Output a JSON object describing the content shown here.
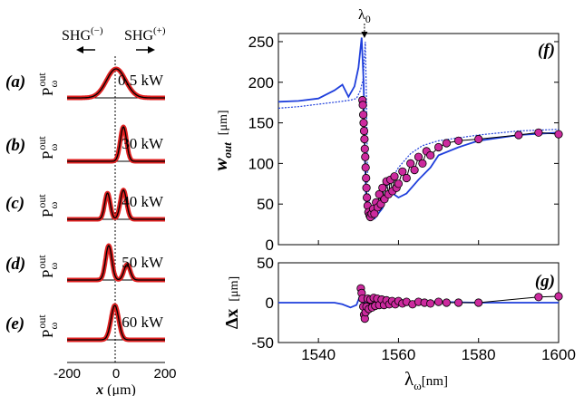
{
  "chart_data": [
    {
      "type": "line",
      "panels": [
        {
          "tag": "(a)",
          "power": "0.5 kW",
          "profile": [
            {
              "center": 0,
              "width": 55,
              "amp": 1.0
            }
          ]
        },
        {
          "tag": "(b)",
          "power": "30 kW",
          "profile": [
            {
              "center": 30,
              "width": 18,
              "amp": 1.0
            }
          ]
        },
        {
          "tag": "(c)",
          "power": "40 kW",
          "profile": [
            {
              "center": -35,
              "width": 16,
              "amp": 0.85
            },
            {
              "center": 30,
              "width": 18,
              "amp": 0.95
            }
          ]
        },
        {
          "tag": "(d)",
          "power": "50 kW",
          "profile": [
            {
              "center": -30,
              "width": 18,
              "amp": 1.0
            },
            {
              "center": 45,
              "width": 18,
              "amp": 0.45
            }
          ]
        },
        {
          "tag": "(e)",
          "power": "60 kW",
          "profile": [
            {
              "center": -5,
              "width": 22,
              "amp": 1.0
            }
          ]
        }
      ],
      "xlim": [
        -200,
        200
      ],
      "xticks": [
        "-200",
        "0",
        "200"
      ],
      "xlabel_var": "x",
      "xlabel_unit": "(μm)",
      "ylabel_main": "P",
      "ylabel_sub": "ω",
      "ylabel_sup": "out",
      "annot_left": "SHG",
      "annot_left_sup": "(−)",
      "annot_right": "SHG",
      "annot_right_sup": "(+)"
    },
    {
      "type": "line",
      "tag": "(f)",
      "lambda0_label": "λ",
      "lambda0_sub": "0",
      "lambda0_x": 1551.5,
      "xlim": [
        1530,
        1600
      ],
      "ylim": [
        0,
        260
      ],
      "yticks": [
        "0",
        "50",
        "100",
        "150",
        "200",
        "250"
      ],
      "ylabel_main": "w",
      "ylabel_sub": "out",
      "ylabel_unit": "[μm]",
      "series": [
        {
          "style": "solid",
          "color": "#1f3fdc",
          "x": [
            1530,
            1535,
            1540,
            1544,
            1546,
            1547.5,
            1549,
            1550,
            1550.8,
            1551.3,
            1551.6,
            1552,
            1553,
            1554,
            1556,
            1557,
            1558,
            1560,
            1562,
            1565,
            1568,
            1570,
            1575,
            1580,
            1590,
            1600
          ],
          "y": [
            176,
            177,
            180,
            190,
            197,
            182,
            195,
            218,
            255,
            200,
            110,
            40,
            33,
            32,
            45,
            60,
            65,
            58,
            63,
            80,
            95,
            110,
            120,
            128,
            135,
            138
          ]
        },
        {
          "style": "dotted",
          "color": "#1f3fdc",
          "x": [
            1530,
            1535,
            1540,
            1545,
            1548,
            1549.5,
            1550.5,
            1551.2,
            1551.7,
            1552,
            1552.3,
            1553,
            1555,
            1557,
            1560,
            1563,
            1566,
            1570,
            1580,
            1590,
            1600
          ],
          "y": [
            168,
            170,
            173,
            176,
            178,
            180,
            190,
            205,
            250,
            180,
            75,
            40,
            55,
            70,
            95,
            112,
            122,
            128,
            135,
            140,
            142
          ]
        },
        {
          "style": "markers",
          "color": "#000000",
          "marker": "#cc2a9e",
          "x": [
            1551,
            1551.1,
            1551.2,
            1551.3,
            1551.4,
            1551.5,
            1551.6,
            1551.7,
            1551.8,
            1551.9,
            1552,
            1552.1,
            1552.3,
            1552.5,
            1552.8,
            1553,
            1553.3,
            1553.7,
            1554,
            1554.4,
            1554.8,
            1555.2,
            1555.6,
            1556,
            1556.5,
            1557,
            1557.5,
            1558,
            1558.5,
            1559,
            1559.5,
            1560,
            1561,
            1562,
            1563,
            1564,
            1565,
            1566,
            1567,
            1568,
            1570,
            1572,
            1575,
            1580,
            1590,
            1595,
            1600
          ],
          "y": [
            178,
            172,
            160,
            150,
            140,
            130,
            118,
            108,
            95,
            82,
            70,
            58,
            48,
            40,
            36,
            34,
            38,
            44,
            38,
            52,
            46,
            62,
            50,
            70,
            56,
            78,
            62,
            80,
            66,
            84,
            70,
            75,
            90,
            82,
            100,
            92,
            108,
            100,
            115,
            110,
            120,
            125,
            128,
            130,
            135,
            138,
            136
          ]
        }
      ]
    },
    {
      "type": "line",
      "tag": "(g)",
      "xlim": [
        1530,
        1600
      ],
      "ylim": [
        -50,
        50
      ],
      "xticks": [
        "1540",
        "1560",
        "1580",
        "1600"
      ],
      "yticks": [
        "50",
        "0",
        "-50"
      ],
      "ylabel_main": "Δx",
      "ylabel_unit": "[μm]",
      "xlabel_main": "λ",
      "xlabel_sub": "ω",
      "xlabel_unit": "[nm]",
      "series": [
        {
          "style": "solid",
          "color": "#1f3fdc",
          "x": [
            1530,
            1544,
            1546,
            1548,
            1549.5,
            1550.5,
            1551.2,
            1551.8,
            1552.3,
            1553,
            1554,
            1556,
            1560,
            1570,
            1580,
            1590,
            1600
          ],
          "y": [
            0,
            0,
            -2,
            -6,
            -3,
            10,
            18,
            -15,
            -8,
            5,
            -3,
            2,
            -1,
            1,
            0,
            0,
            0
          ]
        },
        {
          "style": "markers",
          "color": "#000000",
          "marker": "#cc2a9e",
          "x": [
            1550.6,
            1550.8,
            1551,
            1551.2,
            1551.4,
            1551.6,
            1551.8,
            1552,
            1552.3,
            1552.6,
            1553,
            1553.4,
            1553.8,
            1554.2,
            1554.7,
            1555.2,
            1555.8,
            1556.4,
            1557,
            1557.7,
            1558.4,
            1559.2,
            1560,
            1561,
            1562,
            1563.5,
            1565,
            1566.5,
            1568,
            1570,
            1572,
            1575,
            1580,
            1595,
            1600
          ],
          "y": [
            18,
            12,
            5,
            -5,
            -15,
            -20,
            -12,
            -5,
            5,
            -8,
            4,
            -6,
            6,
            -4,
            5,
            -3,
            4,
            -3,
            3,
            -2,
            2,
            -2,
            2,
            -1,
            1,
            -2,
            1,
            0,
            -1,
            1,
            0,
            0,
            0,
            7,
            8
          ]
        }
      ]
    }
  ]
}
